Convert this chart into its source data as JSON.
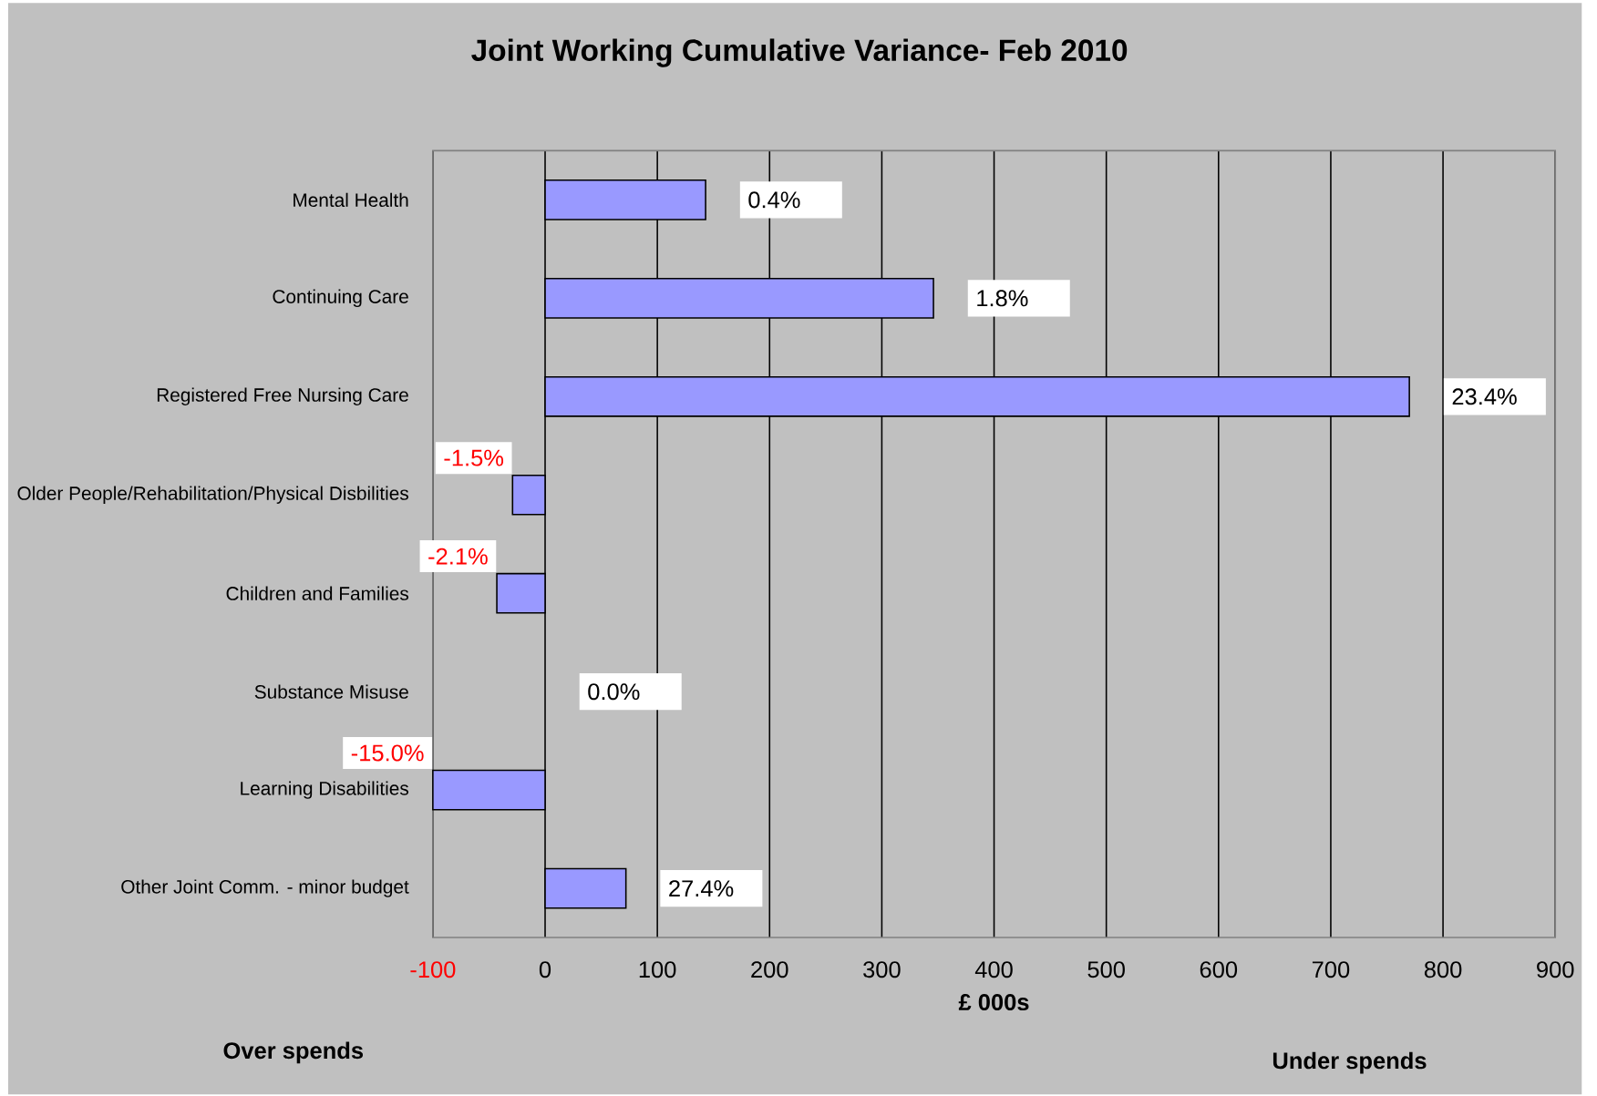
{
  "chart_data": {
    "type": "bar",
    "orientation": "horizontal",
    "title": "Joint Working Cumulative Variance- Feb 2010",
    "xlabel": "£ 000s",
    "categories": [
      "Mental Health",
      "Continuing Care",
      "Registered Free Nursing Care",
      "Older People/Rehabilitation/Physical Disbilities",
      "Children and Families",
      "Substance Misuse",
      "Learning Disabilities",
      "Other Joint Comm. - minor budget"
    ],
    "values": [
      143,
      346,
      770,
      -29,
      -43,
      0,
      -100,
      72
    ],
    "color": "#9999ff",
    "xlim": [
      -100,
      900
    ],
    "xticks": [
      -100,
      0,
      100,
      200,
      300,
      400,
      500,
      600,
      700,
      800,
      900
    ],
    "grid": "x",
    "annotations": [
      "Over spends",
      "Under spends",
      {
        "text": "0.4%",
        "x": 143,
        "y": "Mental Health"
      },
      {
        "text": "1.8%",
        "x": 346,
        "y": "Continuing Care"
      },
      {
        "text": "23.4%",
        "x": 770,
        "y": "Registered Free Nursing Care"
      },
      {
        "text": "-1.5%",
        "x": -29,
        "y": "Older People/Rehabilitation/Physical Disbilities"
      },
      {
        "text": "-2.1%",
        "x": -43,
        "y": "Children and Families"
      },
      {
        "text": "0.0%",
        "x": 0,
        "y": "Substance Misuse"
      },
      {
        "text": "-15.0%",
        "x": -100,
        "y": "Learning Disabilities"
      },
      {
        "text": "27.4%",
        "x": 72,
        "y": "Other Joint Comm. - minor budget"
      }
    ]
  }
}
